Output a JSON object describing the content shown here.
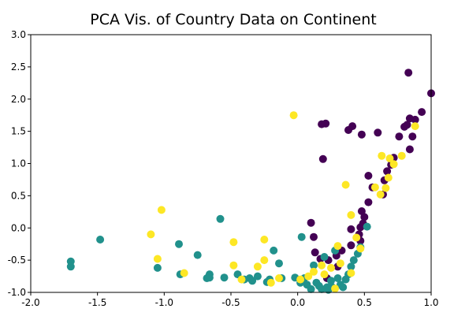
{
  "chart_data": {
    "type": "scatter",
    "title": "PCA Vis. of Country Data on Continent",
    "xlabel": "",
    "ylabel": "",
    "xlim": [
      -2.0,
      1.0
    ],
    "ylim": [
      -1.0,
      3.0
    ],
    "x_ticks": [
      "-2.0",
      "-1.5",
      "-1.0",
      "-0.5",
      "0.0",
      "0.5",
      "1.0"
    ],
    "y_ticks": [
      "-1.0",
      "-0.5",
      "0.0",
      "0.5",
      "1.0",
      "1.5",
      "2.0",
      "2.5",
      "3.0"
    ],
    "grid": false,
    "legend": "none",
    "series": [
      {
        "color": "#440154",
        "points": [
          [
            0.21,
            1.62
          ],
          [
            0.18,
            1.61
          ],
          [
            0.38,
            1.52
          ],
          [
            0.41,
            1.58
          ],
          [
            0.48,
            1.45
          ],
          [
            0.6,
            1.48
          ],
          [
            0.8,
            1.57
          ],
          [
            0.83,
            2.41
          ],
          [
            0.88,
            1.68
          ],
          [
            0.93,
            1.8
          ],
          [
            1.0,
            2.09
          ],
          [
            0.82,
            1.6
          ],
          [
            0.84,
            1.7
          ],
          [
            0.76,
            1.42
          ],
          [
            0.84,
            1.22
          ],
          [
            0.19,
            1.07
          ],
          [
            0.53,
            0.81
          ],
          [
            0.65,
            0.74
          ],
          [
            0.64,
            0.52
          ],
          [
            0.56,
            0.63
          ],
          [
            0.53,
            0.4
          ],
          [
            0.48,
            0.26
          ],
          [
            0.5,
            0.17
          ],
          [
            0.47,
            0.01
          ],
          [
            0.49,
            0.07
          ],
          [
            0.4,
            -0.02
          ],
          [
            0.1,
            0.08
          ],
          [
            0.12,
            -0.14
          ],
          [
            0.4,
            -0.27
          ],
          [
            0.33,
            -0.35
          ],
          [
            0.29,
            -0.43
          ],
          [
            0.23,
            -0.5
          ],
          [
            0.3,
            -0.6
          ],
          [
            0.13,
            -0.38
          ],
          [
            0.17,
            -0.48
          ],
          [
            0.22,
            -0.78
          ],
          [
            0.46,
            -0.1
          ],
          [
            0.47,
            -0.2
          ],
          [
            0.67,
            0.88
          ],
          [
            0.7,
            0.98
          ],
          [
            0.72,
            1.09
          ],
          [
            0.86,
            1.42
          ]
        ]
      },
      {
        "color": "#21918c",
        "points": [
          [
            -1.7,
            -0.52
          ],
          [
            -1.7,
            -0.6
          ],
          [
            -1.48,
            -0.18
          ],
          [
            -1.05,
            -0.62
          ],
          [
            -0.89,
            -0.25
          ],
          [
            -0.88,
            -0.72
          ],
          [
            -0.75,
            -0.42
          ],
          [
            -0.68,
            -0.78
          ],
          [
            -0.66,
            -0.72
          ],
          [
            -0.66,
            -0.77
          ],
          [
            -0.58,
            0.14
          ],
          [
            -0.55,
            -0.77
          ],
          [
            -0.45,
            -0.72
          ],
          [
            -0.4,
            -0.8
          ],
          [
            -0.36,
            -0.78
          ],
          [
            -0.34,
            -0.82
          ],
          [
            -0.3,
            -0.75
          ],
          [
            -0.23,
            -0.84
          ],
          [
            -0.21,
            -0.8
          ],
          [
            -0.18,
            -0.35
          ],
          [
            -0.14,
            -0.55
          ],
          [
            -0.12,
            -0.78
          ],
          [
            -0.02,
            -0.77
          ],
          [
            0.02,
            -0.85
          ],
          [
            0.03,
            -0.14
          ],
          [
            0.05,
            -0.78
          ],
          [
            0.07,
            -0.88
          ],
          [
            0.1,
            -0.95
          ],
          [
            0.14,
            -0.85
          ],
          [
            0.16,
            -0.9
          ],
          [
            0.18,
            -0.95
          ],
          [
            0.2,
            -0.45
          ],
          [
            0.22,
            -0.92
          ],
          [
            0.23,
            -0.96
          ],
          [
            0.26,
            -0.92
          ],
          [
            0.28,
            -0.35
          ],
          [
            0.3,
            -0.78
          ],
          [
            0.32,
            -0.88
          ],
          [
            0.34,
            -0.92
          ],
          [
            0.36,
            -0.8
          ],
          [
            0.38,
            -0.72
          ],
          [
            0.4,
            -0.6
          ],
          [
            0.42,
            -0.5
          ],
          [
            0.45,
            -0.4
          ],
          [
            0.47,
            -0.3
          ],
          [
            0.52,
            0.02
          ],
          [
            0.12,
            -0.58
          ],
          [
            0.25,
            -0.82
          ]
        ]
      },
      {
        "color": "#fde725",
        "points": [
          [
            -0.03,
            1.75
          ],
          [
            -1.02,
            0.28
          ],
          [
            -1.1,
            -0.1
          ],
          [
            -1.05,
            -0.48
          ],
          [
            -0.85,
            -0.7
          ],
          [
            -0.48,
            -0.22
          ],
          [
            -0.48,
            -0.58
          ],
          [
            -0.42,
            -0.8
          ],
          [
            -0.3,
            -0.6
          ],
          [
            -0.25,
            -0.18
          ],
          [
            -0.25,
            -0.5
          ],
          [
            -0.2,
            -0.85
          ],
          [
            -0.14,
            -0.78
          ],
          [
            0.02,
            -0.8
          ],
          [
            0.08,
            -0.75
          ],
          [
            0.12,
            -0.68
          ],
          [
            0.18,
            -0.58
          ],
          [
            0.2,
            -0.72
          ],
          [
            0.25,
            -0.62
          ],
          [
            0.28,
            -0.94
          ],
          [
            0.32,
            -0.55
          ],
          [
            0.36,
            0.67
          ],
          [
            0.4,
            0.2
          ],
          [
            0.44,
            -0.15
          ],
          [
            0.47,
            -0.32
          ],
          [
            0.62,
            0.52
          ],
          [
            0.63,
            1.12
          ],
          [
            0.66,
            0.62
          ],
          [
            0.68,
            0.78
          ],
          [
            0.69,
            1.08
          ],
          [
            0.72,
            0.99
          ],
          [
            0.78,
            1.12
          ],
          [
            0.88,
            1.58
          ],
          [
            0.3,
            -0.28
          ],
          [
            0.4,
            -0.7
          ],
          [
            0.58,
            0.63
          ]
        ]
      }
    ]
  }
}
